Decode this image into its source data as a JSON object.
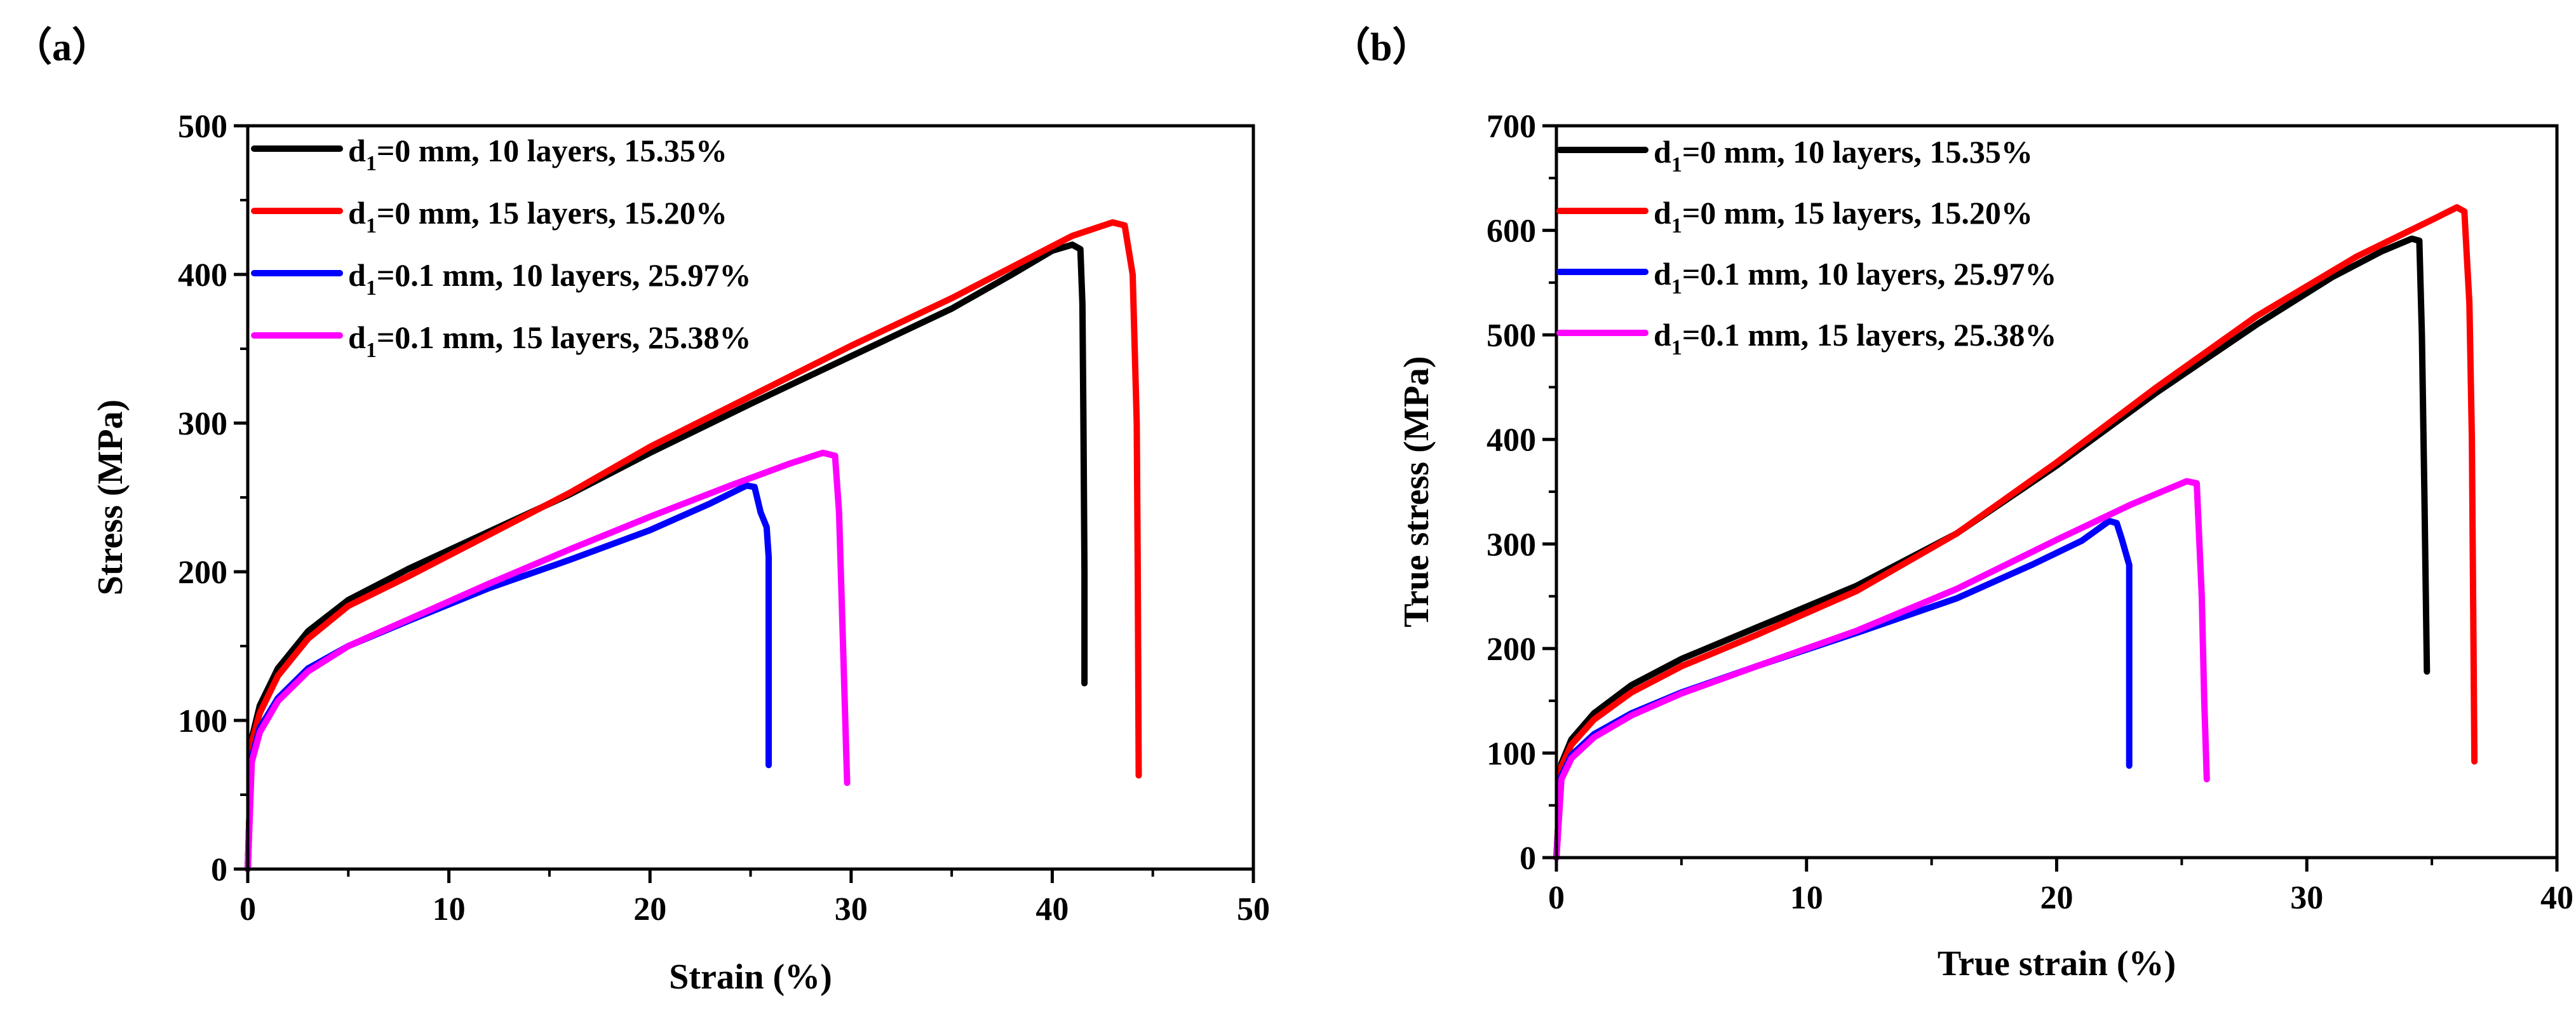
{
  "chart_data": [
    {
      "type": "line",
      "panel_label": "（a）",
      "xlabel": "Strain (%)",
      "ylabel": "Stress (MPa)",
      "xlim": [
        0,
        50
      ],
      "ylim": [
        0,
        500
      ],
      "xticks": [
        0,
        10,
        20,
        30,
        40,
        50
      ],
      "yticks": [
        0,
        100,
        200,
        300,
        400,
        500
      ],
      "legend_position": "top-left",
      "series": [
        {
          "name": "d",
          "legend_sub": "1",
          "legend_rest": "=0 mm, 10 layers, 15.35%",
          "color": "#000000",
          "points": [
            [
              0,
              0
            ],
            [
              0.2,
              88
            ],
            [
              0.6,
              110
            ],
            [
              1.5,
              135
            ],
            [
              3,
              160
            ],
            [
              5,
              181
            ],
            [
              8,
              202
            ],
            [
              12,
              227
            ],
            [
              16,
              252
            ],
            [
              20,
              280
            ],
            [
              25,
              313
            ],
            [
              30,
              345
            ],
            [
              35,
              377
            ],
            [
              38,
              400
            ],
            [
              40,
              416
            ],
            [
              41,
              420
            ],
            [
              41.4,
              417
            ],
            [
              41.5,
              380
            ],
            [
              41.55,
              300
            ],
            [
              41.6,
              200
            ],
            [
              41.6,
              125
            ]
          ]
        },
        {
          "name": "d",
          "legend_sub": "1",
          "legend_rest": "=0 mm, 15 layers, 15.20%",
          "color": "#ff0000",
          "points": [
            [
              0,
              0
            ],
            [
              0.2,
              85
            ],
            [
              0.6,
              105
            ],
            [
              1.5,
              130
            ],
            [
              3,
              155
            ],
            [
              5,
              177
            ],
            [
              8,
              197
            ],
            [
              12,
              225
            ],
            [
              16,
              253
            ],
            [
              20,
              284
            ],
            [
              25,
              318
            ],
            [
              30,
              352
            ],
            [
              35,
              384
            ],
            [
              38,
              405
            ],
            [
              41,
              426
            ],
            [
              43,
              435
            ],
            [
              43.6,
              433
            ],
            [
              44,
              400
            ],
            [
              44.2,
              300
            ],
            [
              44.25,
              200
            ],
            [
              44.3,
              63
            ]
          ]
        },
        {
          "name": "d",
          "legend_sub": "1",
          "legend_rest": "=0.1 mm, 10 layers, 25.97%",
          "color": "#0000ff",
          "points": [
            [
              0,
              0
            ],
            [
              0.2,
              75
            ],
            [
              0.6,
              95
            ],
            [
              1.5,
              115
            ],
            [
              3,
              135
            ],
            [
              5,
              150
            ],
            [
              8,
              167
            ],
            [
              12,
              189
            ],
            [
              16,
              208
            ],
            [
              20,
              228
            ],
            [
              23,
              246
            ],
            [
              24.8,
              258
            ],
            [
              25.2,
              257
            ],
            [
              25.5,
              240
            ],
            [
              25.8,
              230
            ],
            [
              25.9,
              210
            ],
            [
              25.9,
              70
            ]
          ]
        },
        {
          "name": "d",
          "legend_sub": "1",
          "legend_rest": "=0.1 mm, 15 layers, 25.38%",
          "color": "#ff00ff",
          "points": [
            [
              0,
              0
            ],
            [
              0.2,
              72
            ],
            [
              0.6,
              92
            ],
            [
              1.5,
              113
            ],
            [
              3,
              133
            ],
            [
              5,
              150
            ],
            [
              8,
              168
            ],
            [
              12,
              192
            ],
            [
              16,
              215
            ],
            [
              20,
              237
            ],
            [
              24,
              258
            ],
            [
              27,
              273
            ],
            [
              28.6,
              280
            ],
            [
              29.2,
              278
            ],
            [
              29.4,
              240
            ],
            [
              29.6,
              150
            ],
            [
              29.8,
              58
            ]
          ]
        }
      ]
    },
    {
      "type": "line",
      "panel_label": "（b）",
      "xlabel": "True strain (%)",
      "ylabel": "True stress (MPa)",
      "xlim": [
        0,
        40
      ],
      "ylim": [
        0,
        700
      ],
      "xticks": [
        0,
        10,
        20,
        30,
        40
      ],
      "yticks": [
        0,
        100,
        200,
        300,
        400,
        500,
        600,
        700
      ],
      "legend_position": "top-left",
      "series": [
        {
          "name": "d",
          "legend_sub": "1",
          "legend_rest": "=0 mm, 10 layers, 15.35%",
          "color": "#000000",
          "points": [
            [
              0,
              0
            ],
            [
              0.2,
              90
            ],
            [
              0.6,
              113
            ],
            [
              1.5,
              138
            ],
            [
              3,
              165
            ],
            [
              5,
              190
            ],
            [
              8,
              220
            ],
            [
              12,
              260
            ],
            [
              16,
              310
            ],
            [
              20,
              375
            ],
            [
              24,
              445
            ],
            [
              28,
              510
            ],
            [
              31,
              555
            ],
            [
              33,
              580
            ],
            [
              34.2,
              592
            ],
            [
              34.5,
              590
            ],
            [
              34.6,
              500
            ],
            [
              34.7,
              350
            ],
            [
              34.8,
              178
            ]
          ]
        },
        {
          "name": "d",
          "legend_sub": "1",
          "legend_rest": "=0 mm, 15 layers, 15.20%",
          "color": "#ff0000",
          "points": [
            [
              0,
              0
            ],
            [
              0.2,
              87
            ],
            [
              0.6,
              108
            ],
            [
              1.5,
              132
            ],
            [
              3,
              158
            ],
            [
              5,
              183
            ],
            [
              8,
              213
            ],
            [
              12,
              255
            ],
            [
              16,
              310
            ],
            [
              20,
              378
            ],
            [
              24,
              450
            ],
            [
              28,
              518
            ],
            [
              32,
              575
            ],
            [
              35,
              610
            ],
            [
              36,
              622
            ],
            [
              36.3,
              618
            ],
            [
              36.5,
              530
            ],
            [
              36.6,
              400
            ],
            [
              36.7,
              92
            ]
          ]
        },
        {
          "name": "d",
          "legend_sub": "1",
          "legend_rest": "=0.1 mm, 10 layers, 25.97%",
          "color": "#0000ff",
          "points": [
            [
              0,
              0
            ],
            [
              0.2,
              78
            ],
            [
              0.6,
              98
            ],
            [
              1.5,
              118
            ],
            [
              3,
              138
            ],
            [
              5,
              158
            ],
            [
              8,
              183
            ],
            [
              12,
              215
            ],
            [
              16,
              248
            ],
            [
              19,
              280
            ],
            [
              21,
              303
            ],
            [
              22.1,
              322
            ],
            [
              22.4,
              320
            ],
            [
              22.6,
              305
            ],
            [
              22.9,
              280
            ],
            [
              22.9,
              88
            ]
          ]
        },
        {
          "name": "d",
          "legend_sub": "1",
          "legend_rest": "=0.1 mm, 15 layers, 25.38%",
          "color": "#ff00ff",
          "points": [
            [
              0,
              0
            ],
            [
              0.2,
              75
            ],
            [
              0.6,
              95
            ],
            [
              1.5,
              115
            ],
            [
              3,
              136
            ],
            [
              5,
              157
            ],
            [
              8,
              183
            ],
            [
              12,
              217
            ],
            [
              16,
              257
            ],
            [
              20,
              304
            ],
            [
              23,
              338
            ],
            [
              25.2,
              360
            ],
            [
              25.6,
              358
            ],
            [
              25.8,
              250
            ],
            [
              25.9,
              150
            ],
            [
              26,
              75
            ]
          ]
        }
      ]
    }
  ]
}
